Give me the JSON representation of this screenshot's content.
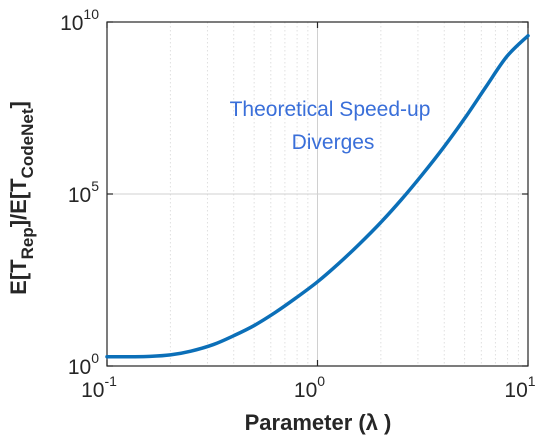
{
  "chart_data": {
    "type": "line",
    "x_scale": "log",
    "y_scale": "log",
    "xlim": [
      0.1,
      10
    ],
    "ylim": [
      1,
      10000000000
    ],
    "grid": "x-minor-and-major, y-major",
    "x_ticks": [
      {
        "value": 0.1,
        "base": "10",
        "exp": "-1"
      },
      {
        "value": 1,
        "base": "10",
        "exp": "0"
      },
      {
        "value": 10,
        "base": "10",
        "exp": "1"
      }
    ],
    "y_ticks": [
      {
        "value": 1,
        "base": "10",
        "exp": "0"
      },
      {
        "value": 100000,
        "base": "10",
        "exp": "5"
      },
      {
        "value": 10000000000,
        "base": "10",
        "exp": "10"
      }
    ],
    "xlabel": "Parameter (λ )",
    "ylabel": {
      "part1": "E[T",
      "sub1": "Rep",
      "part2": "]/E[T",
      "sub2": "CodeNet",
      "part3": "]"
    },
    "annotation": {
      "line1": "Theoretical Speed-up",
      "line2": "Diverges",
      "color": "#3a6fd9"
    },
    "series": [
      {
        "color": "#0b6fb8",
        "x": [
          0.1,
          0.13,
          0.16,
          0.2,
          0.25,
          0.32,
          0.4,
          0.5,
          0.63,
          0.79,
          1.0,
          1.26,
          1.58,
          2.0,
          2.51,
          3.16,
          3.98,
          5.01,
          6.31,
          7.94,
          10.0
        ],
        "y": [
          1.86,
          1.86,
          1.9,
          2.1,
          2.7,
          4.2,
          7.6,
          15,
          36,
          95,
          280,
          950,
          3500,
          15000,
          70000,
          380000,
          2300000,
          16000000,
          130000000,
          1000000000,
          4000000000
        ]
      }
    ]
  }
}
